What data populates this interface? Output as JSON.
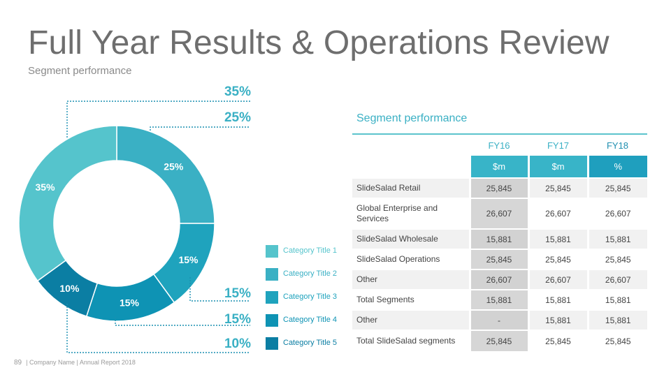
{
  "title": "Full Year Results & Operations Review",
  "subtitle": "Segment performance",
  "chart_data": {
    "type": "pie",
    "variant": "donut",
    "labels": [
      "Category Title 1",
      "Category Title 2",
      "Category Title 3",
      "Category Title 4",
      "Category Title 5"
    ],
    "values": [
      35,
      25,
      15,
      15,
      10
    ],
    "value_labels": [
      "35%",
      "25%",
      "15%",
      "15%",
      "10%"
    ],
    "colors": [
      "#55c4cc",
      "#3ab0c4",
      "#1fa3bd",
      "#0e93b4",
      "#0b7ea3"
    ],
    "legend_position": "right",
    "callout_labels": [
      "35%",
      "25%",
      "15%",
      "15%",
      "10%"
    ]
  },
  "table": {
    "title": "Segment performance",
    "columns": [
      "FY16",
      "FY17",
      "FY18"
    ],
    "units": [
      "$m",
      "$m",
      "%"
    ],
    "rows": [
      {
        "name": "SlideSalad Retail",
        "values": [
          "25,845",
          "25,845",
          "25,845"
        ]
      },
      {
        "name": "Global Enterprise and Services",
        "values": [
          "26,607",
          "26,607",
          "26,607"
        ]
      },
      {
        "name": "SlideSalad Wholesale",
        "values": [
          "15,881",
          "15,881",
          "15,881"
        ]
      },
      {
        "name": "SlideSalad Operations",
        "values": [
          "25,845",
          "25,845",
          "25,845"
        ]
      },
      {
        "name": "Other",
        "values": [
          "26,607",
          "26,607",
          "26,607"
        ]
      },
      {
        "name": "Total Segments",
        "values": [
          "15,881",
          "15,881",
          "15,881"
        ]
      },
      {
        "name": "Other",
        "values": [
          "-",
          "15,881",
          "15,881"
        ]
      },
      {
        "name": "Total SlideSalad segments",
        "values": [
          "25,845",
          "25,845",
          "25,845"
        ]
      }
    ]
  },
  "footer": {
    "page_number": "89",
    "text": "| Company Name | Annual Report 2018"
  }
}
